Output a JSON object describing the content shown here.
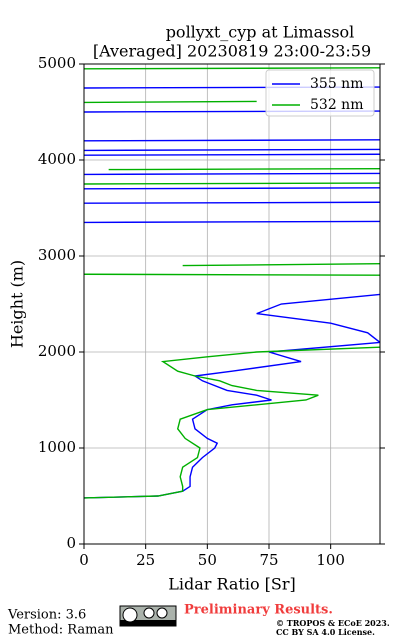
{
  "chart_data": {
    "type": "line",
    "title": "pollyxt_cyp at Limassol",
    "subtitle": "[Averaged] 20230819 23:00-23:59",
    "x_label": "Lidar Ratio [Sr]",
    "y_label": "Height (m)",
    "xlim": [
      0,
      120
    ],
    "xticks": [
      0,
      25,
      50,
      75,
      100
    ],
    "ylim": [
      0,
      5000
    ],
    "yticks": [
      0,
      1000,
      2000,
      3000,
      4000,
      5000
    ],
    "grid": true,
    "legend": "upper right",
    "series": [
      {
        "name": "355 nm",
        "color": "#0000ff",
        "y": [
          480,
          500,
          550,
          600,
          700,
          800,
          900,
          1000,
          1050,
          1100,
          1200,
          1300,
          1400,
          1450,
          1500,
          1550,
          1600,
          1700,
          1750,
          1800,
          1900,
          2000,
          2100,
          2200,
          2300,
          2400,
          2500,
          2600,
          null,
          3350,
          3360,
          null,
          3550,
          3560,
          null,
          3700,
          3710,
          null,
          3850,
          3860,
          null,
          4050,
          4060,
          null,
          4100,
          4110,
          null,
          4200,
          4210,
          null,
          4500,
          4510,
          null,
          4750,
          4760
        ],
        "values": [
          0,
          30,
          40,
          43,
          43,
          44,
          48,
          53,
          54,
          50,
          45,
          44,
          50,
          60,
          76,
          70,
          58,
          48,
          45,
          60,
          88,
          75,
          120,
          115,
          100,
          70,
          80,
          120,
          null,
          0,
          120,
          null,
          0,
          120,
          null,
          0,
          120,
          null,
          0,
          120,
          null,
          0,
          120,
          null,
          0,
          120,
          null,
          0,
          120,
          null,
          0,
          120,
          null,
          0,
          120
        ]
      },
      {
        "name": "532 nm",
        "color": "#00b000",
        "y": [
          480,
          500,
          550,
          600,
          700,
          800,
          900,
          1000,
          1100,
          1200,
          1300,
          1400,
          1500,
          1550,
          1600,
          1650,
          1700,
          1750,
          1800,
          1900,
          1950,
          2000,
          2050,
          null,
          2800,
          2810,
          null,
          2900,
          2920,
          null,
          3750,
          3760,
          null,
          3900,
          3910,
          null,
          4600,
          4610,
          null,
          4950,
          4960
        ],
        "values": [
          0,
          30,
          40,
          40,
          39,
          40,
          46,
          47,
          41,
          38,
          39,
          50,
          90,
          95,
          70,
          60,
          55,
          45,
          38,
          32,
          50,
          70,
          120,
          null,
          120,
          0,
          null,
          40,
          120,
          null,
          0,
          120,
          null,
          10,
          120,
          null,
          0,
          70,
          null,
          0,
          120
        ]
      }
    ],
    "footer": {
      "version": "Version: 3.6",
      "method": "Method: Raman",
      "notice": "Preliminary Results.",
      "copyright": "© TROPOS & ECoE 2023.",
      "license": "CC BY SA 4.0 License."
    }
  }
}
